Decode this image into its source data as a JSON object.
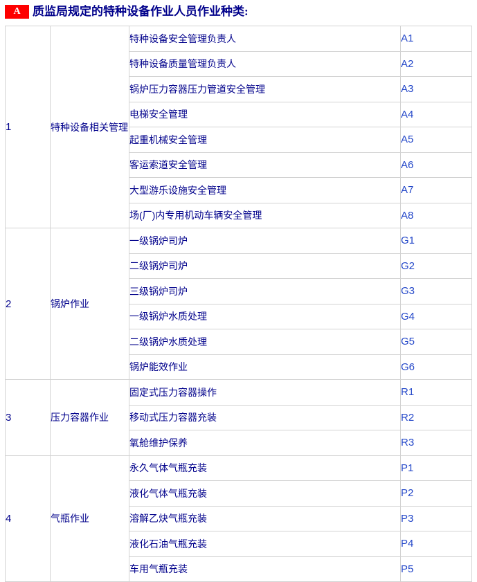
{
  "header": {
    "badge": "A",
    "title": "质监局规定的特种设备作业人员作业种类:"
  },
  "colors": {
    "badge_bg": "#fe0000",
    "badge_text": "#ffffff",
    "title_text": "#00008b",
    "cell_text": "#00008b",
    "code_text": "#2246c8",
    "border": "#d2d2d2",
    "background": "#ffffff"
  },
  "table": {
    "sections": [
      {
        "number": "1",
        "category": "特种设备相关管理",
        "items": [
          {
            "name": "特种设备安全管理负责人",
            "code": "A1"
          },
          {
            "name": "特种设备质量管理负责人",
            "code": "A2"
          },
          {
            "name": "锅炉压力容器压力管道安全管理",
            "code": "A3"
          },
          {
            "name": "电梯安全管理",
            "code": "A4"
          },
          {
            "name": "起重机械安全管理",
            "code": "A5"
          },
          {
            "name": "客运索道安全管理",
            "code": "A6"
          },
          {
            "name": "大型游乐设施安全管理",
            "code": "A7"
          },
          {
            "name": "场(厂)内专用机动车辆安全管理",
            "code": "A8"
          }
        ]
      },
      {
        "number": "2",
        "category": "锅炉作业",
        "items": [
          {
            "name": "一级锅炉司炉",
            "code": "G1"
          },
          {
            "name": "二级锅炉司炉",
            "code": "G2"
          },
          {
            "name": "三级锅炉司炉",
            "code": "G3"
          },
          {
            "name": "一级锅炉水质处理",
            "code": "G4"
          },
          {
            "name": "二级锅炉水质处理",
            "code": "G5"
          },
          {
            "name": "锅炉能效作业",
            "code": "G6"
          }
        ]
      },
      {
        "number": "3",
        "category": "压力容器作业",
        "items": [
          {
            "name": "固定式压力容器操作",
            "code": "R1"
          },
          {
            "name": "移动式压力容器充装",
            "code": "R2"
          },
          {
            "name": "氧舱维护保养",
            "code": "R3"
          }
        ]
      },
      {
        "number": "4",
        "category": "气瓶作业",
        "items": [
          {
            "name": "永久气体气瓶充装",
            "code": "P1"
          },
          {
            "name": "液化气体气瓶充装",
            "code": "P2"
          },
          {
            "name": "溶解乙炔气瓶充装",
            "code": "P3"
          },
          {
            "name": "液化石油气瓶充装",
            "code": "P4"
          },
          {
            "name": "车用气瓶充装",
            "code": "P5"
          }
        ]
      }
    ]
  }
}
